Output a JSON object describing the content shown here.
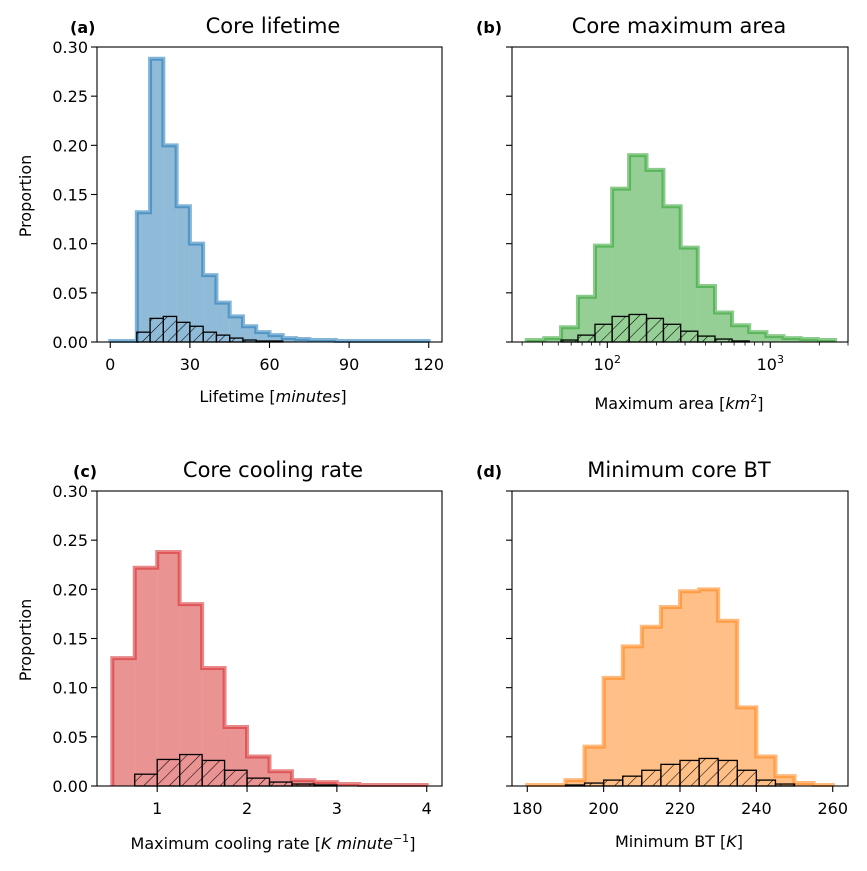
{
  "colors": {
    "lifetime": "#1f77b4",
    "area": "#2ca02c",
    "cooling": "#d62728",
    "bt": "#ff7f0e",
    "subset_edge": "#000000"
  },
  "chart_data": [
    {
      "type": "histogram",
      "panel": "(a)",
      "title": "Core lifetime",
      "xlabel": "Lifetime [minutes]",
      "ylabel": "Proportion",
      "xlim": [
        -5,
        125
      ],
      "ylim": [
        0,
        0.3
      ],
      "xscale": "linear",
      "xticks": [
        0,
        30,
        60,
        90,
        120
      ],
      "xtick_labels": [
        "0",
        "30",
        "60",
        "90",
        "120"
      ],
      "yticks": [
        0,
        0.05,
        0.1,
        0.15,
        0.2,
        0.25,
        0.3
      ],
      "ytick_labels": [
        "0.00",
        "0.05",
        "0.10",
        "0.15",
        "0.20",
        "0.25",
        "0.30"
      ],
      "bin_edges": [
        0,
        5,
        10,
        15,
        20,
        25,
        30,
        35,
        40,
        45,
        50,
        55,
        60,
        65,
        70,
        75,
        80,
        85,
        90,
        95,
        100,
        105,
        110,
        115,
        120
      ],
      "all_cores": [
        0.001,
        0.001,
        0.132,
        0.288,
        0.2,
        0.138,
        0.1,
        0.068,
        0.04,
        0.026,
        0.016,
        0.01,
        0.007,
        0.004,
        0.003,
        0.002,
        0.002,
        0.001,
        0.001,
        0.001,
        0.001,
        0.001,
        0.001,
        0.001
      ],
      "subset": [
        0,
        0,
        0.01,
        0.024,
        0.026,
        0.02,
        0.016,
        0.01,
        0.007,
        0.004,
        0.002,
        0.001,
        0.001,
        0,
        0,
        0,
        0,
        0,
        0,
        0,
        0,
        0,
        0,
        0
      ],
      "color_key": "lifetime"
    },
    {
      "type": "histogram",
      "panel": "(b)",
      "title": "Core maximum area",
      "xlabel": "Maximum area [km²]",
      "ylabel": "",
      "xlim": [
        26,
        3000
      ],
      "ylim": [
        0,
        0.3
      ],
      "xscale": "log",
      "xticks": [
        100,
        1000
      ],
      "xtick_labels": [
        "10²",
        "10³"
      ],
      "yticks": [
        0,
        0.05,
        0.1,
        0.15,
        0.2,
        0.25,
        0.3
      ],
      "ytick_labels": [],
      "bin_edges": [
        32,
        41,
        52,
        66,
        84,
        107,
        136,
        174,
        221,
        282,
        359,
        458,
        583,
        743,
        947,
        1207,
        1538,
        1960,
        2500
      ],
      "all_cores": [
        0.002,
        0.004,
        0.015,
        0.046,
        0.098,
        0.156,
        0.19,
        0.175,
        0.138,
        0.096,
        0.057,
        0.03,
        0.017,
        0.01,
        0.006,
        0.004,
        0.003,
        0.002
      ],
      "subset": [
        0,
        0,
        0.002,
        0.007,
        0.018,
        0.026,
        0.028,
        0.024,
        0.018,
        0.011,
        0.006,
        0.003,
        0.001,
        0,
        0,
        0,
        0,
        0
      ],
      "color_key": "area"
    },
    {
      "type": "histogram",
      "panel": "(c)",
      "title": "Core cooling rate",
      "xlabel": "Maximum cooling rate [K minute⁻¹]",
      "ylabel": "Proportion",
      "xlim": [
        0.33,
        4.17
      ],
      "ylim": [
        0,
        0.3
      ],
      "xscale": "linear",
      "xticks": [
        1,
        2,
        3,
        4
      ],
      "xtick_labels": [
        "1",
        "2",
        "3",
        "4"
      ],
      "yticks": [
        0,
        0.05,
        0.1,
        0.15,
        0.2,
        0.25,
        0.3
      ],
      "ytick_labels": [
        "0.00",
        "0.05",
        "0.10",
        "0.15",
        "0.20",
        "0.25",
        "0.30"
      ],
      "bin_edges": [
        0.5,
        0.75,
        1.0,
        1.25,
        1.5,
        1.75,
        2.0,
        2.25,
        2.5,
        2.75,
        3.0,
        3.25,
        3.5,
        3.75,
        4.0
      ],
      "all_cores": [
        0.13,
        0.222,
        0.238,
        0.185,
        0.12,
        0.06,
        0.03,
        0.015,
        0.006,
        0.004,
        0.002,
        0.001,
        0.001,
        0.001
      ],
      "subset": [
        0,
        0.012,
        0.027,
        0.032,
        0.026,
        0.016,
        0.008,
        0.004,
        0.002,
        0.001,
        0,
        0,
        0,
        0
      ],
      "color_key": "cooling"
    },
    {
      "type": "histogram",
      "panel": "(d)",
      "title": "Minimum core BT",
      "xlabel": "Minimum BT [K]",
      "ylabel": "",
      "xlim": [
        176,
        264
      ],
      "ylim": [
        0,
        0.3
      ],
      "xscale": "linear",
      "xticks": [
        180,
        200,
        220,
        240,
        260
      ],
      "xtick_labels": [
        "180",
        "200",
        "220",
        "240",
        "260"
      ],
      "yticks": [
        0,
        0.05,
        0.1,
        0.15,
        0.2,
        0.25,
        0.3
      ],
      "ytick_labels": [],
      "bin_edges": [
        180,
        185,
        190,
        195,
        200,
        205,
        210,
        215,
        220,
        225,
        230,
        235,
        240,
        245,
        250,
        255,
        260
      ],
      "all_cores": [
        0.001,
        0.001,
        0.006,
        0.04,
        0.11,
        0.142,
        0.162,
        0.182,
        0.198,
        0.2,
        0.168,
        0.08,
        0.03,
        0.01,
        0.003,
        0.001
      ],
      "subset": [
        0,
        0,
        0.001,
        0.003,
        0.006,
        0.01,
        0.016,
        0.022,
        0.026,
        0.028,
        0.026,
        0.016,
        0.006,
        0.002,
        0,
        0
      ],
      "color_key": "bt"
    }
  ]
}
